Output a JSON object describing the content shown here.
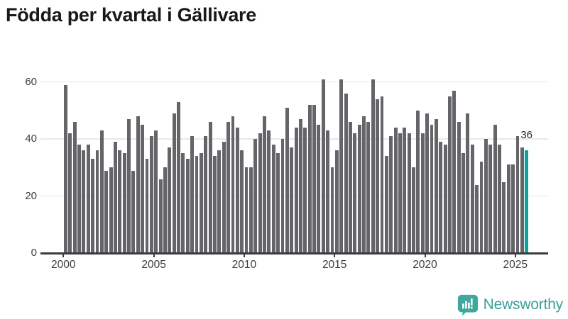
{
  "title": "Födda per kvartal i Gällivare",
  "chart_data": {
    "type": "bar",
    "title": "Födda per kvartal i Gällivare",
    "x_unit": "quarter",
    "start_quarter": "2000 Q1",
    "end_quarter": "2025 Q3",
    "values": [
      59,
      42,
      46,
      38,
      36,
      38,
      33,
      36,
      43,
      29,
      30,
      39,
      36,
      35,
      47,
      29,
      48,
      45,
      33,
      41,
      43,
      26,
      30,
      37,
      49,
      53,
      35,
      33,
      41,
      34,
      35,
      41,
      46,
      34,
      36,
      39,
      46,
      48,
      44,
      36,
      30,
      30,
      40,
      42,
      48,
      43,
      38,
      35,
      40,
      51,
      37,
      44,
      47,
      44,
      52,
      52,
      45,
      61,
      43,
      30,
      36,
      61,
      56,
      46,
      42,
      45,
      48,
      46,
      61,
      54,
      55,
      34,
      41,
      44,
      42,
      44,
      42,
      30,
      50,
      42,
      49,
      45,
      47,
      39,
      38,
      55,
      57,
      46,
      35,
      49,
      38,
      24,
      32,
      40,
      38,
      45,
      38,
      25,
      31,
      31,
      41,
      37,
      36
    ],
    "ylim": [
      0,
      60
    ],
    "yticks": [
      0,
      20,
      40,
      60
    ],
    "ytick_labels": [
      "0",
      "20",
      "40",
      "60"
    ],
    "xticks": [
      2000,
      2005,
      2010,
      2015,
      2020,
      2025
    ],
    "xtick_labels": [
      "2000",
      "2005",
      "2010",
      "2015",
      "2020",
      "2025"
    ],
    "grid": "horizontal",
    "legend": "none",
    "bar_color": "#656569",
    "highlight": {
      "index": 102,
      "value": 36,
      "label": "36",
      "color": "#0ba39c"
    }
  },
  "footer": {
    "brand": "Newsworthy",
    "brand_color": "#3ba099",
    "logo_icon": "speech-bubble-with-bar-chart-and-exclamation",
    "logo_color": "#40a79f"
  }
}
